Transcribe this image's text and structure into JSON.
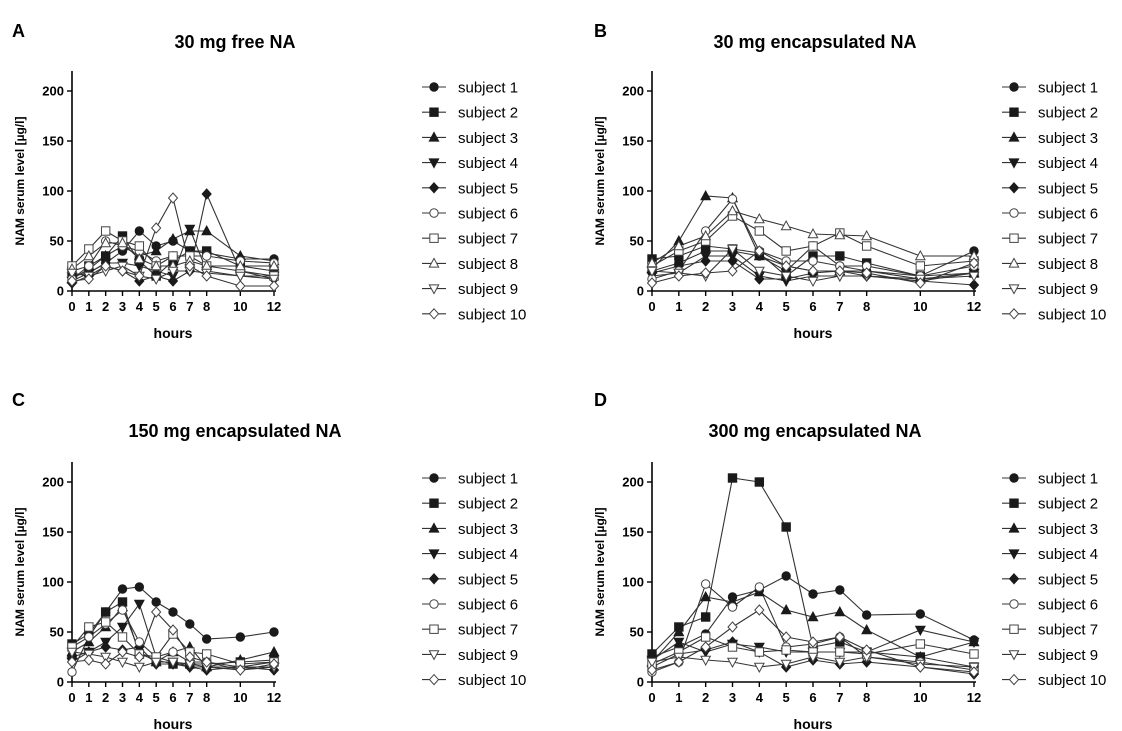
{
  "chart_data": [
    {
      "panel": "A",
      "title": "30 mg free NA",
      "type": "line",
      "xlabel": "hours",
      "ylabel": "NAM serum level [µg/l]",
      "x": [
        0,
        1,
        2,
        3,
        4,
        5,
        6,
        7,
        8,
        10,
        12
      ],
      "xticks": [
        0,
        1,
        2,
        3,
        4,
        5,
        6,
        7,
        8,
        10,
        12
      ],
      "yticks": [
        0,
        50,
        100,
        150,
        200
      ],
      "ylim": [
        0,
        220
      ],
      "series": [
        {
          "name": "subject 1",
          "values": [
            15,
            18,
            28,
            40,
            60,
            45,
            50,
            40,
            38,
            32,
            32
          ]
        },
        {
          "name": "subject 2",
          "values": [
            20,
            25,
            35,
            55,
            30,
            15,
            30,
            40,
            40,
            25,
            20
          ]
        },
        {
          "name": "subject 3",
          "values": [
            12,
            22,
            35,
            45,
            35,
            40,
            52,
            60,
            60,
            35,
            30
          ]
        },
        {
          "name": "subject 4",
          "values": [
            10,
            18,
            28,
            28,
            25,
            20,
            15,
            62,
            20,
            15,
            15
          ]
        },
        {
          "name": "subject 5",
          "values": [
            8,
            15,
            25,
            20,
            10,
            15,
            10,
            20,
            97,
            20,
            12
          ]
        },
        {
          "name": "subject 6",
          "values": [
            12,
            25,
            50,
            45,
            40,
            30,
            35,
            35,
            35,
            30,
            28
          ]
        },
        {
          "name": "subject 7",
          "values": [
            25,
            42,
            60,
            50,
            45,
            25,
            35,
            35,
            25,
            20,
            15
          ]
        },
        {
          "name": "subject 8",
          "values": [
            22,
            35,
            48,
            48,
            32,
            25,
            25,
            30,
            25,
            25,
            25
          ]
        },
        {
          "name": "subject 9",
          "values": [
            18,
            15,
            20,
            25,
            15,
            12,
            20,
            20,
            18,
            15,
            12
          ]
        },
        {
          "name": "subject 10",
          "values": [
            10,
            12,
            25,
            20,
            15,
            63,
            93,
            25,
            15,
            5,
            5
          ]
        }
      ]
    },
    {
      "panel": "B",
      "title": "30 mg encapsulated NA",
      "type": "line",
      "xlabel": "hours",
      "ylabel": "NAM serum level [µg/l]",
      "x": [
        0,
        1,
        2,
        3,
        4,
        5,
        6,
        7,
        8,
        10,
        12
      ],
      "xticks": [
        0,
        1,
        2,
        3,
        4,
        5,
        6,
        7,
        8,
        10,
        12
      ],
      "yticks": [
        0,
        50,
        100,
        150,
        200
      ],
      "ylim": [
        0,
        220
      ],
      "series": [
        {
          "name": "subject 1",
          "values": [
            20,
            28,
            40,
            40,
            35,
            20,
            45,
            25,
            20,
            15,
            40
          ]
        },
        {
          "name": "subject 2",
          "values": [
            32,
            35,
            45,
            42,
            38,
            15,
            35,
            35,
            28,
            15,
            18
          ]
        },
        {
          "name": "subject 3",
          "values": [
            22,
            50,
            95,
            93,
            35,
            25,
            20,
            20,
            20,
            12,
            18
          ]
        },
        {
          "name": "subject 4",
          "values": [
            15,
            18,
            35,
            35,
            15,
            10,
            15,
            15,
            15,
            10,
            18
          ]
        },
        {
          "name": "subject 5",
          "values": [
            18,
            25,
            30,
            30,
            12,
            12,
            18,
            20,
            15,
            10,
            6
          ]
        },
        {
          "name": "subject 6",
          "values": [
            12,
            20,
            60,
            92,
            40,
            30,
            30,
            25,
            25,
            15,
            25
          ]
        },
        {
          "name": "subject 7",
          "values": [
            25,
            40,
            50,
            75,
            60,
            40,
            45,
            58,
            45,
            25,
            30
          ]
        },
        {
          "name": "subject 8",
          "values": [
            28,
            45,
            55,
            80,
            72,
            65,
            57,
            56,
            55,
            35,
            35
          ]
        },
        {
          "name": "subject 9",
          "values": [
            20,
            18,
            15,
            42,
            20,
            15,
            10,
            15,
            15,
            12,
            15
          ]
        },
        {
          "name": "subject 10",
          "values": [
            8,
            15,
            18,
            20,
            40,
            25,
            20,
            20,
            18,
            8,
            28
          ]
        }
      ]
    },
    {
      "panel": "C",
      "title": "150 mg encapsulated NA",
      "type": "line",
      "xlabel": "hours",
      "ylabel": "NAM serum level [µg/l]",
      "x": [
        0,
        1,
        2,
        3,
        4,
        5,
        6,
        7,
        8,
        10,
        12
      ],
      "xticks": [
        0,
        1,
        2,
        3,
        4,
        5,
        6,
        7,
        8,
        10,
        12
      ],
      "yticks": [
        0,
        50,
        100,
        150,
        200
      ],
      "ylim": [
        0,
        220
      ],
      "series": [
        {
          "name": "subject 1",
          "values": [
            35,
            45,
            70,
            93,
            95,
            80,
            70,
            58,
            43,
            45,
            50
          ]
        },
        {
          "name": "subject 2",
          "values": [
            38,
            48,
            70,
            80,
            28,
            22,
            18,
            18,
            18,
            20,
            22
          ]
        },
        {
          "name": "subject 3",
          "values": [
            30,
            40,
            55,
            75,
            30,
            20,
            30,
            35,
            15,
            22,
            30
          ]
        },
        {
          "name": "subject 4",
          "values": [
            20,
            30,
            40,
            55,
            78,
            25,
            20,
            15,
            15,
            15,
            15
          ]
        },
        {
          "name": "subject 5",
          "values": [
            25,
            30,
            35,
            32,
            35,
            18,
            18,
            15,
            12,
            15,
            12
          ]
        },
        {
          "name": "subject 6",
          "values": [
            10,
            45,
            58,
            72,
            40,
            25,
            30,
            20,
            20,
            15,
            20
          ]
        },
        {
          "name": "subject 7",
          "values": [
            35,
            55,
            60,
            45,
            28,
            25,
            48,
            30,
            28,
            18,
            20
          ]
        },
        {
          "name": "subject 9",
          "values": [
            30,
            28,
            25,
            20,
            15,
            20,
            20,
            18,
            15,
            12,
            15
          ]
        },
        {
          "name": "subject 10",
          "values": [
            20,
            22,
            18,
            30,
            25,
            70,
            52,
            25,
            20,
            12,
            18
          ]
        }
      ]
    },
    {
      "panel": "D",
      "title": "300 mg encapsulated NA",
      "type": "line",
      "xlabel": "hours",
      "ylabel": "NAM serum level [µg/l]",
      "x": [
        0,
        1,
        2,
        3,
        4,
        5,
        6,
        7,
        8,
        10,
        12
      ],
      "xticks": [
        0,
        1,
        2,
        3,
        4,
        5,
        6,
        7,
        8,
        10,
        12
      ],
      "yticks": [
        0,
        50,
        100,
        150,
        200
      ],
      "ylim": [
        0,
        220
      ],
      "series": [
        {
          "name": "subject 1",
          "values": [
            25,
            35,
            48,
            85,
            92,
            106,
            88,
            92,
            67,
            68,
            42
          ]
        },
        {
          "name": "subject 2",
          "values": [
            28,
            55,
            65,
            204,
            200,
            155,
            35,
            40,
            30,
            25,
            15
          ]
        },
        {
          "name": "subject 3",
          "values": [
            20,
            50,
            85,
            80,
            90,
            72,
            65,
            70,
            52,
            25,
            40
          ]
        },
        {
          "name": "subject 4",
          "values": [
            22,
            40,
            30,
            38,
            35,
            30,
            30,
            30,
            30,
            52,
            40
          ]
        },
        {
          "name": "subject 5",
          "values": [
            15,
            28,
            32,
            40,
            30,
            15,
            22,
            18,
            20,
            15,
            8
          ]
        },
        {
          "name": "subject 6",
          "values": [
            10,
            20,
            98,
            75,
            95,
            35,
            38,
            45,
            25,
            20,
            12
          ]
        },
        {
          "name": "subject 7",
          "values": [
            18,
            30,
            45,
            35,
            30,
            32,
            30,
            30,
            28,
            38,
            28
          ]
        },
        {
          "name": "subject 9",
          "values": [
            20,
            25,
            22,
            20,
            15,
            18,
            25,
            20,
            25,
            18,
            15
          ]
        },
        {
          "name": "subject 10",
          "values": [
            12,
            20,
            35,
            55,
            72,
            45,
            40,
            45,
            32,
            15,
            10
          ]
        }
      ]
    }
  ]
}
